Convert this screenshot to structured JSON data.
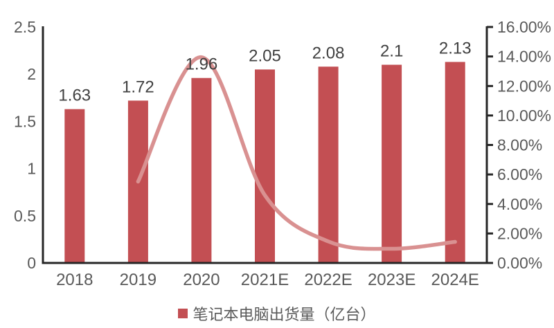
{
  "chart_data": {
    "type": "bar+line combo",
    "categories": [
      "2018",
      "2019",
      "2020",
      "2021E",
      "2022E",
      "2023E",
      "2024E"
    ],
    "series": [
      {
        "type": "bar",
        "axis": "left",
        "values": [
          1.63,
          1.72,
          1.96,
          2.05,
          2.08,
          2.1,
          2.13
        ],
        "data_labels": [
          "1.63",
          "1.72",
          "1.96",
          "2.05",
          "2.08",
          "2.1",
          "2.13"
        ],
        "color": "#c34f53"
      },
      {
        "type": "line",
        "axis": "right",
        "values": [
          null,
          5.52,
          13.95,
          4.59,
          1.46,
          0.96,
          1.43
        ],
        "color": "#d99191",
        "smooth": true
      }
    ],
    "left_axis": {
      "min": 0,
      "max": 2.5,
      "tick_labels_top_to_bottom": [
        "2.5",
        "2",
        "1.5",
        "1",
        "0.5",
        "0"
      ]
    },
    "right_axis": {
      "min": 0,
      "max": 16,
      "tick_labels_top_to_bottom": [
        "16.00%",
        "14.00%",
        "12.00%",
        "10.00%",
        "8.00%",
        "6.00%",
        "4.00%",
        "2.00%",
        "0.00%"
      ]
    },
    "legend": [
      {
        "label": "笔记本电脑出货量（亿台）",
        "color": "#c34f53"
      }
    ],
    "layout_hints": {
      "legend_position": "bottom-center",
      "grid": "off",
      "axis_line_color": "#262626",
      "axis_text_color": "#595959",
      "data_label_color": "#404040"
    }
  }
}
